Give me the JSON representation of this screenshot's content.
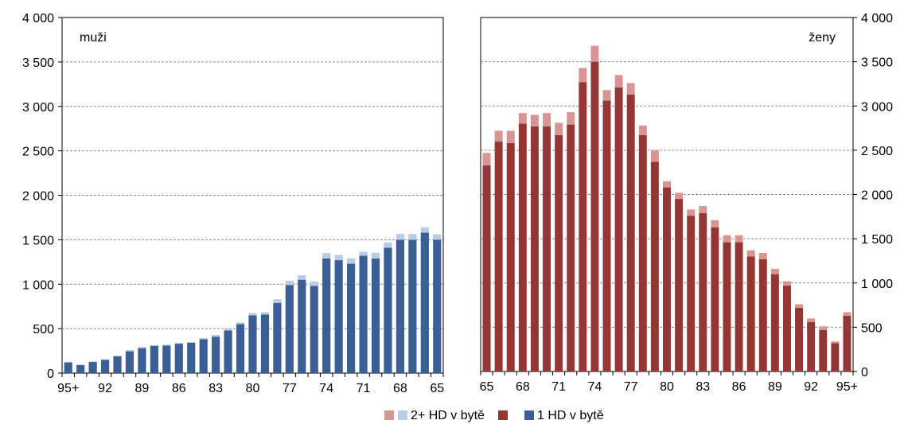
{
  "chart_data": [
    {
      "type": "bar",
      "stacked": true,
      "title": "muži",
      "x_order": "descending",
      "categories": [
        "95+",
        "94",
        "93",
        "92",
        "91",
        "90",
        "89",
        "88",
        "87",
        "86",
        "85",
        "84",
        "83",
        "82",
        "81",
        "80",
        "79",
        "78",
        "77",
        "76",
        "75",
        "74",
        "73",
        "72",
        "71",
        "70",
        "69",
        "68",
        "67",
        "66",
        "65"
      ],
      "tick_labels": [
        "95+",
        "92",
        "89",
        "86",
        "83",
        "80",
        "77",
        "74",
        "71",
        "68",
        "65"
      ],
      "ylim": [
        0,
        4000
      ],
      "yticks": [
        "0",
        "500",
        "1 000",
        "1 500",
        "2 000",
        "2 500",
        "3 000",
        "3 500",
        "4 000"
      ],
      "y_axis_side": "left",
      "gridlines": "dashed",
      "series": [
        {
          "name": "1 HD v bytě",
          "color": "#3a5f94",
          "values": [
            120,
            90,
            125,
            150,
            190,
            245,
            280,
            305,
            310,
            330,
            340,
            380,
            410,
            480,
            550,
            650,
            660,
            790,
            990,
            1050,
            980,
            1290,
            1270,
            1230,
            1320,
            1290,
            1410,
            1500,
            1500,
            1580,
            1500
          ]
        },
        {
          "name": "2+ HD v bytě",
          "color": "#b8cce4",
          "values": [
            5,
            5,
            5,
            5,
            5,
            15,
            15,
            10,
            10,
            10,
            10,
            15,
            20,
            15,
            20,
            25,
            25,
            40,
            50,
            50,
            50,
            60,
            60,
            60,
            45,
            65,
            60,
            65,
            65,
            60,
            60
          ]
        }
      ]
    },
    {
      "type": "bar",
      "stacked": true,
      "title": "ženy",
      "x_order": "ascending",
      "categories": [
        "65",
        "66",
        "67",
        "68",
        "69",
        "70",
        "71",
        "72",
        "73",
        "74",
        "75",
        "76",
        "77",
        "78",
        "79",
        "80",
        "81",
        "82",
        "83",
        "84",
        "85",
        "86",
        "87",
        "88",
        "89",
        "90",
        "91",
        "92",
        "93",
        "94",
        "95+"
      ],
      "tick_labels": [
        "65",
        "68",
        "71",
        "74",
        "77",
        "80",
        "83",
        "86",
        "89",
        "92",
        "95+"
      ],
      "ylim": [
        0,
        4000
      ],
      "yticks": [
        "0",
        "500",
        "1 000",
        "1 500",
        "2 000",
        "2 500",
        "3 000",
        "3 500",
        "4 000"
      ],
      "y_axis_side": "right",
      "gridlines": "dashed",
      "series": [
        {
          "name": "1 HD v bytě",
          "color": "#943634",
          "values": [
            2330,
            2600,
            2580,
            2800,
            2770,
            2770,
            2670,
            2790,
            3270,
            3500,
            3060,
            3210,
            3130,
            2670,
            2370,
            2080,
            1950,
            1760,
            1790,
            1630,
            1460,
            1460,
            1300,
            1270,
            1100,
            970,
            720,
            560,
            470,
            320,
            630
          ]
        },
        {
          "name": "2+ HD v bytě",
          "color": "#d99594",
          "values": [
            140,
            120,
            140,
            120,
            130,
            150,
            140,
            140,
            160,
            180,
            120,
            140,
            130,
            110,
            130,
            70,
            70,
            70,
            80,
            80,
            80,
            80,
            70,
            70,
            60,
            50,
            40,
            40,
            40,
            20,
            40
          ]
        }
      ]
    }
  ],
  "legend": {
    "position": "bottom-center",
    "items": [
      {
        "label": "2+ HD v bytě",
        "colors": [
          "#d99594",
          "#b8cce4"
        ]
      },
      {
        "label": "1 HD v bytě",
        "colors": [
          "#943634",
          "#3a5f94"
        ]
      }
    ]
  }
}
